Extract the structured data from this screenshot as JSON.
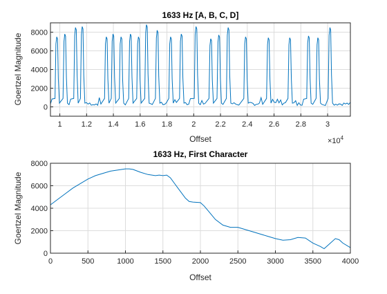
{
  "chart_data": [
    {
      "type": "line",
      "title": "1633 Hz [A, B, C, D]",
      "xlabel": "Offset",
      "ylabel": "Goertzel Magnitude",
      "x_exponent_label": "×10",
      "x_exponent_power": "4",
      "xlim": [
        9300,
        31700
      ],
      "ylim": [
        -1000,
        9000
      ],
      "xticks": [
        10000,
        12000,
        14000,
        16000,
        18000,
        20000,
        22000,
        24000,
        26000,
        28000,
        30000
      ],
      "xtick_labels": [
        "1",
        "1.2",
        "1.4",
        "1.6",
        "1.8",
        "2",
        "2.2",
        "2.4",
        "2.6",
        "2.8",
        "3"
      ],
      "yticks": [
        0,
        2000,
        4000,
        6000,
        8000
      ],
      "ytick_labels": [
        "0",
        "2000",
        "4000",
        "6000",
        "8000"
      ],
      "grid": true,
      "color": "#0072bd",
      "pulses": [
        {
          "x": 9800,
          "value": 7500
        },
        {
          "x": 10400,
          "value": 7800
        },
        {
          "x": 11200,
          "value": 8500
        },
        {
          "x": 11700,
          "value": 8600
        },
        {
          "x": 13500,
          "value": 7500
        },
        {
          "x": 14000,
          "value": 7800
        },
        {
          "x": 14600,
          "value": 7500
        },
        {
          "x": 15300,
          "value": 7800
        },
        {
          "x": 15900,
          "value": 7500
        },
        {
          "x": 16500,
          "value": 8800
        },
        {
          "x": 17300,
          "value": 8200
        },
        {
          "x": 18300,
          "value": 7500
        },
        {
          "x": 19100,
          "value": 7800
        },
        {
          "x": 20200,
          "value": 8600
        },
        {
          "x": 21300,
          "value": 7300
        },
        {
          "x": 21900,
          "value": 7700
        },
        {
          "x": 22600,
          "value": 8500
        },
        {
          "x": 23900,
          "value": 7500
        },
        {
          "x": 25600,
          "value": 7400
        },
        {
          "x": 27200,
          "value": 7400
        },
        {
          "x": 28600,
          "value": 7600
        },
        {
          "x": 29300,
          "value": 7400
        },
        {
          "x": 30200,
          "value": 8500
        }
      ]
    },
    {
      "type": "line",
      "title": "1633 Hz, First Character",
      "xlabel": "Offset",
      "ylabel": "Goertzel Magnitude",
      "xlim": [
        0,
        4000
      ],
      "ylim": [
        0,
        8000
      ],
      "xticks": [
        0,
        500,
        1000,
        1500,
        2000,
        2500,
        3000,
        3500,
        4000
      ],
      "xtick_labels": [
        "0",
        "500",
        "1000",
        "1500",
        "2000",
        "2500",
        "3000",
        "3500",
        "4000"
      ],
      "yticks": [
        0,
        2000,
        4000,
        6000,
        8000
      ],
      "ytick_labels": [
        "0",
        "2000",
        "4000",
        "6000",
        "8000"
      ],
      "grid": true,
      "color": "#0072bd",
      "x": [
        0,
        100,
        200,
        300,
        400,
        500,
        600,
        700,
        800,
        900,
        1000,
        1050,
        1100,
        1200,
        1300,
        1400,
        1450,
        1500,
        1550,
        1600,
        1700,
        1800,
        1850,
        1900,
        2000,
        2050,
        2100,
        2200,
        2300,
        2400,
        2500,
        2600,
        2700,
        2800,
        2900,
        3000,
        3100,
        3200,
        3300,
        3400,
        3500,
        3600,
        3650,
        3700,
        3800,
        3850,
        3900,
        4000
      ],
      "y": [
        4300,
        4800,
        5300,
        5800,
        6200,
        6600,
        6900,
        7100,
        7300,
        7400,
        7500,
        7500,
        7450,
        7200,
        7000,
        6900,
        6950,
        6900,
        6950,
        6700,
        5800,
        4900,
        4600,
        4550,
        4500,
        4200,
        3800,
        3000,
        2500,
        2300,
        2300,
        2100,
        1900,
        1700,
        1500,
        1300,
        1150,
        1200,
        1400,
        1350,
        900,
        600,
        400,
        700,
        1300,
        1200,
        900,
        500
      ]
    }
  ]
}
